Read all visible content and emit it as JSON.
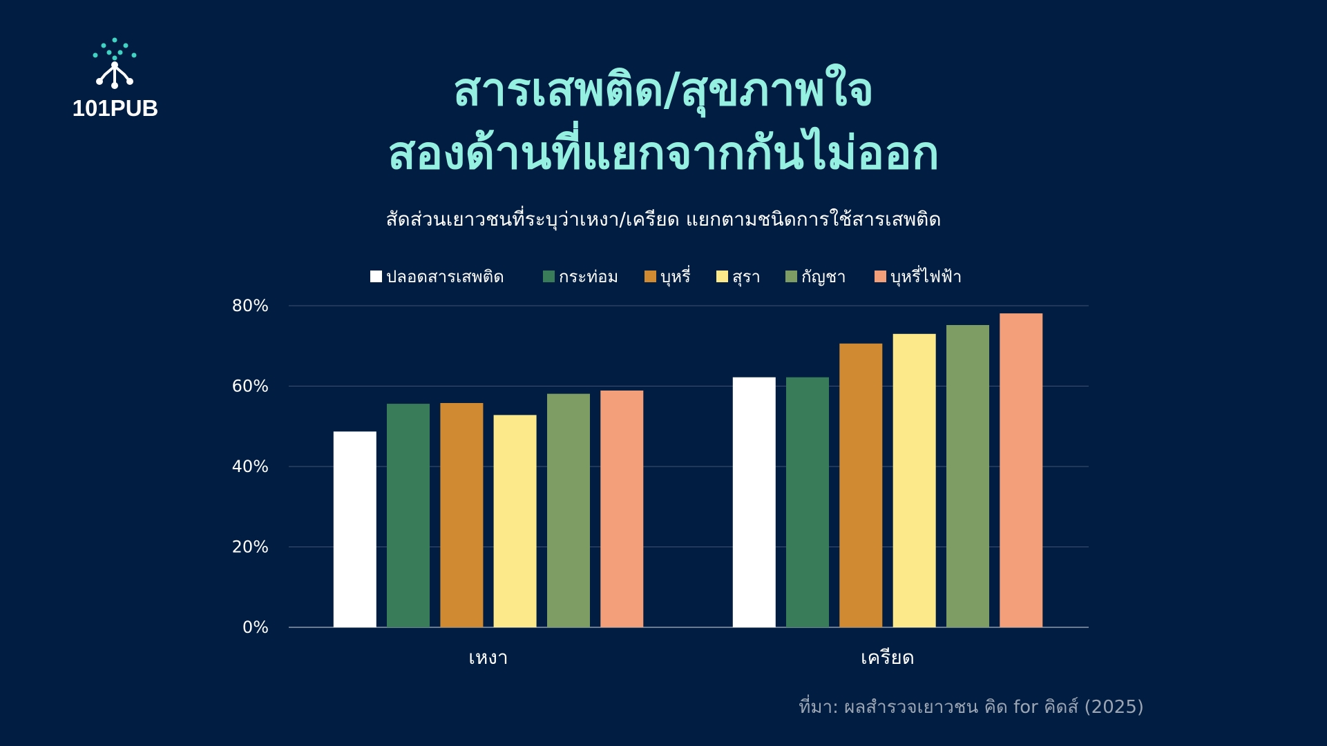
{
  "brand": {
    "name": "101PUB"
  },
  "title_lines": [
    "สารเสพติด/สุขภาพใจ",
    "สองด้านที่แยกจากกันไม่ออก"
  ],
  "source": "ที่มา: ผลสำรวจเยาวชน คิด for คิดส์ (2025)",
  "colors": {
    "background": "#011e42",
    "title": "#96f0e1",
    "logo_dots": "#3fd3c3"
  },
  "chart_data": {
    "type": "bar",
    "title": "สัดส่วนเยาวชนที่ระบุว่าเหงา/เครียด แยกตามชนิดการใช้สารเสพติด",
    "categories": [
      "เหงา",
      "เครียด"
    ],
    "series": [
      {
        "name": "ปลอดสารเสพติด",
        "color": "#ffffff",
        "values": [
          48.7,
          62.2
        ]
      },
      {
        "name": "กระท่อม",
        "color": "#397c59",
        "values": [
          55.6,
          62.2
        ]
      },
      {
        "name": "บุหรี่",
        "color": "#cf8a32",
        "values": [
          55.8,
          70.6
        ]
      },
      {
        "name": "สุรา",
        "color": "#fbe98a",
        "values": [
          52.8,
          73.0
        ]
      },
      {
        "name": "กัญชา",
        "color": "#7e9d65",
        "values": [
          58.1,
          75.2
        ]
      },
      {
        "name": "บุหรี่ไฟฟ้า",
        "color": "#f29f7a",
        "values": [
          58.9,
          78.1
        ]
      }
    ],
    "ylim": [
      0,
      80
    ],
    "yticks": [
      "0%",
      "20%",
      "40%",
      "60%",
      "80%"
    ],
    "xlabel": "",
    "ylabel": "",
    "grid": true,
    "legend_position": "top"
  }
}
